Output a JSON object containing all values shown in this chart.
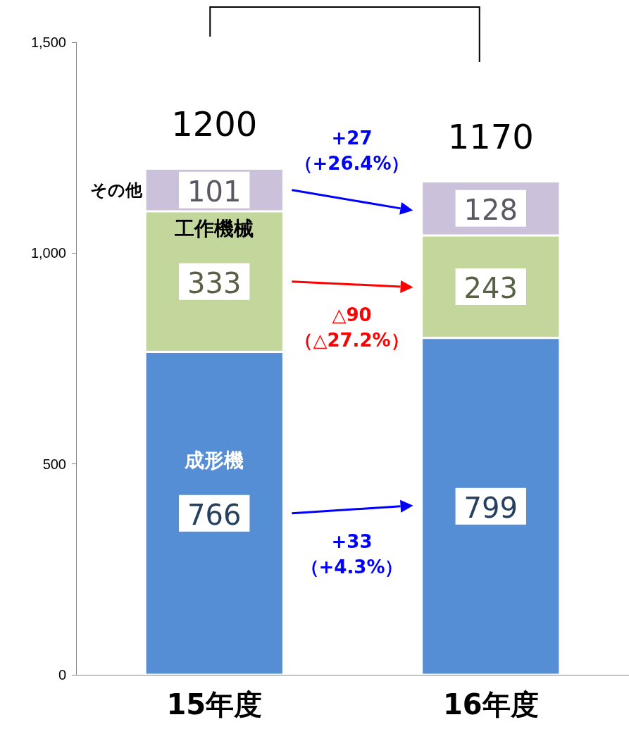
{
  "chart_data": {
    "type": "bar",
    "stacked": true,
    "categories": [
      "15年度",
      "16年度"
    ],
    "series": [
      {
        "name": "成形機",
        "color": "#558ed5",
        "values": [
          766,
          799
        ]
      },
      {
        "name": "工作機械",
        "color": "#c3d69b",
        "values": [
          333,
          243
        ]
      },
      {
        "name": "その他",
        "color": "#ccc1da",
        "values": [
          101,
          128
        ]
      }
    ],
    "totals": [
      "1200",
      "1170"
    ],
    "annotations": [
      "+33\n（+4.3%）",
      "△90\n（△27.2%）",
      "+27\n（+26.4%）"
    ],
    "data_labels": true,
    "legend": false,
    "grid": false,
    "ylim": [
      0,
      1500
    ],
    "yticks": [
      0,
      500,
      {
        "value": 1000,
        "label": "1,000"
      },
      {
        "value": 1500,
        "label": "1,500"
      }
    ]
  }
}
